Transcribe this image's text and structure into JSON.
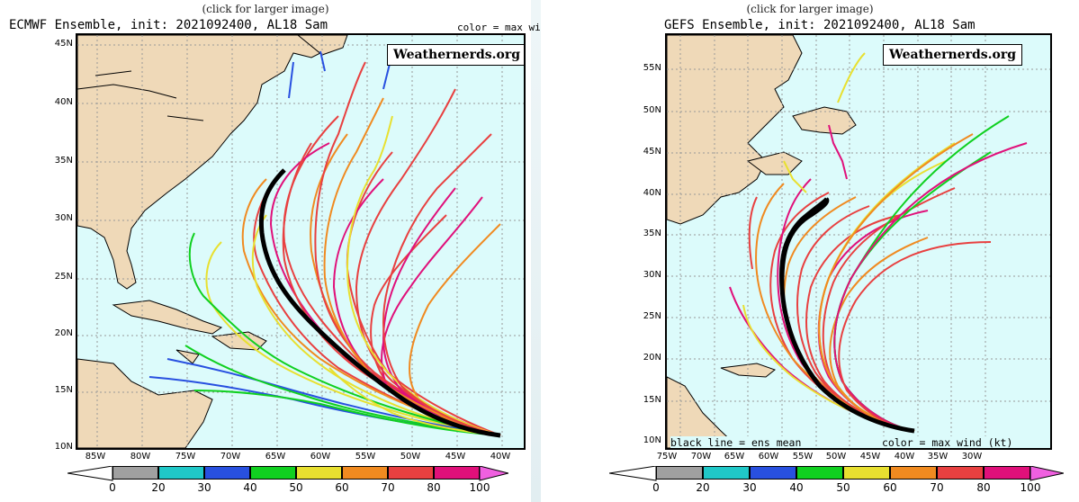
{
  "caption": "(click for larger image)",
  "brand": "Weathernerds.org",
  "colorbar": {
    "labels": [
      "0",
      "20",
      "30",
      "40",
      "50",
      "60",
      "70",
      "80",
      "100"
    ],
    "colors": [
      "#a0a0a0",
      "#20c8c8",
      "#2850e0",
      "#10d020",
      "#e8e030",
      "#f08a20",
      "#e84040",
      "#e0107a",
      "#f060e0"
    ]
  },
  "left": {
    "title": "ECMWF Ensemble, init: 2021092400, AL18 Sam",
    "subtitle": "color = max wind (kt)",
    "lat_labels": [
      "45N",
      "40N",
      "35N",
      "30N",
      "25N",
      "20N",
      "15N",
      "10N"
    ],
    "lon_labels": [
      "85W",
      "80W",
      "75W",
      "70W",
      "65W",
      "60W",
      "55W",
      "50W",
      "45W",
      "40W"
    ]
  },
  "right": {
    "title": "GEFS Ensemble, init: 2021092400, AL18 Sam",
    "bottom_left": "black line = ens mean",
    "bottom_right": "color = max wind (kt)",
    "lat_labels": [
      "55N",
      "50N",
      "45N",
      "40N",
      "35N",
      "30N",
      "25N",
      "20N",
      "15N",
      "10N"
    ],
    "lon_labels": [
      "75W",
      "70W",
      "65W",
      "60W",
      "55W",
      "50W",
      "45W",
      "40W",
      "35W",
      "30W"
    ]
  }
}
